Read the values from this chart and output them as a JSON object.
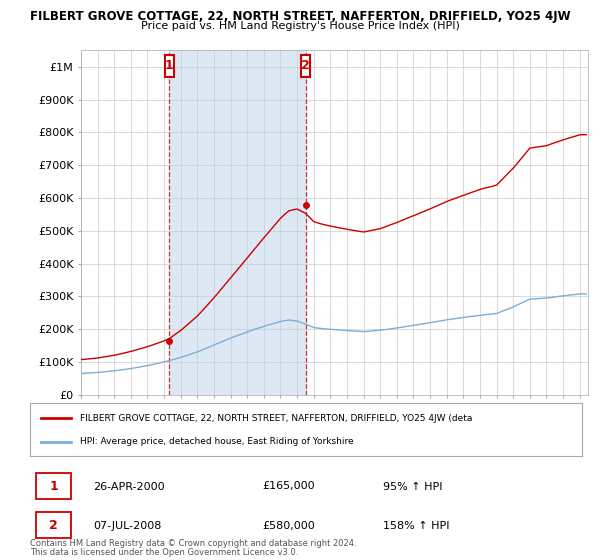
{
  "title": "FILBERT GROVE COTTAGE, 22, NORTH STREET, NAFFERTON, DRIFFIELD, YO25 4JW",
  "subtitle": "Price paid vs. HM Land Registry's House Price Index (HPI)",
  "hpi_label": "HPI: Average price, detached house, East Riding of Yorkshire",
  "property_label": "FILBERT GROVE COTTAGE, 22, NORTH STREET, NAFFERTON, DRIFFIELD, YO25 4JW (deta",
  "red_color": "#cc0000",
  "blue_color": "#7bafd4",
  "shade_color": "#dce9f5",
  "grid_color": "#cccccc",
  "bg_color": "#ffffff",
  "xmin": 1995,
  "xmax": 2025.5,
  "ymin": 0,
  "ymax": 1050000,
  "yticks": [
    0,
    100000,
    200000,
    300000,
    400000,
    500000,
    600000,
    700000,
    800000,
    900000,
    1000000
  ],
  "ytick_labels": [
    "£0",
    "£100K",
    "£200K",
    "£300K",
    "£400K",
    "£500K",
    "£600K",
    "£700K",
    "£800K",
    "£900K",
    "£1M"
  ],
  "xticks": [
    1995,
    1996,
    1997,
    1998,
    1999,
    2000,
    2001,
    2002,
    2003,
    2004,
    2005,
    2006,
    2007,
    2008,
    2009,
    2010,
    2011,
    2012,
    2013,
    2014,
    2015,
    2016,
    2017,
    2018,
    2019,
    2020,
    2021,
    2022,
    2023,
    2024,
    2025
  ],
  "sale1_x": 2000.32,
  "sale1_y": 165000,
  "sale2_x": 2008.52,
  "sale2_y": 580000,
  "ann1_label": "1",
  "ann1_date": "26-APR-2000",
  "ann1_price": "£165,000",
  "ann1_hpi": "95% ↑ HPI",
  "ann2_label": "2",
  "ann2_date": "07-JUL-2008",
  "ann2_price": "£580,000",
  "ann2_hpi": "158% ↑ HPI",
  "footer1": "Contains HM Land Registry data © Crown copyright and database right 2024.",
  "footer2": "This data is licensed under the Open Government Licence v3.0."
}
